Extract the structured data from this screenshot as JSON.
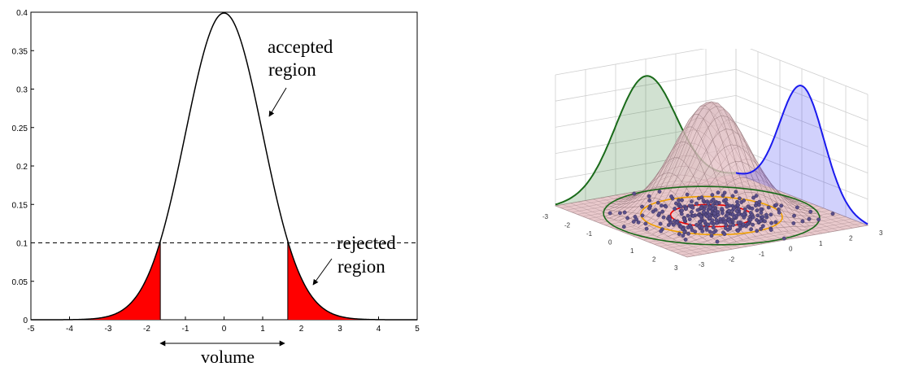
{
  "chart_data": [
    {
      "type": "line",
      "title": "",
      "xlabel": "",
      "ylabel": "",
      "xlim": [
        -5,
        5
      ],
      "ylim": [
        0,
        0.4
      ],
      "x_ticks": [
        "-5",
        "-4",
        "-3",
        "-2",
        "-1",
        "0",
        "1",
        "2",
        "3",
        "4",
        "5"
      ],
      "y_ticks": [
        "0",
        "0.05",
        "0.1",
        "0.15",
        "0.2",
        "0.25",
        "0.3",
        "0.35",
        "0.4"
      ],
      "series": [
        {
          "x": [
            -5,
            -4,
            -3,
            -2.5,
            -2,
            -1.65,
            -1.5,
            -1,
            -0.5,
            0,
            0.5,
            1,
            1.5,
            1.65,
            2,
            2.5,
            3,
            4,
            5
          ],
          "values": [
            1.5e-06,
            0.000134,
            0.0044,
            0.0175,
            0.054,
            0.1023,
            0.1295,
            0.242,
            0.352,
            0.3989,
            0.352,
            0.242,
            0.1295,
            0.1023,
            0.054,
            0.0175,
            0.0044,
            0.000134,
            1.5e-06
          ],
          "color": "#000000"
        }
      ],
      "threshold": 0.1,
      "rejected_x": [
        -1.65,
        1.65
      ],
      "fill_color": "#ff0000",
      "annotations": [
        {
          "lines": [
            "accepted",
            "region"
          ]
        },
        {
          "lines": [
            "rejected",
            "region"
          ]
        },
        {
          "lines": [
            "volume"
          ]
        }
      ]
    },
    {
      "type": "scatter",
      "title": "",
      "x_ticks": [
        "-3",
        "-2",
        "-1",
        "0",
        "1",
        "2",
        "3"
      ],
      "y_ticks": [
        "3",
        "2",
        "1",
        "0",
        "-1",
        "-2",
        "-3"
      ],
      "surface_color": "#e9c9cc",
      "marginal_x_color": "#1a6b1a",
      "marginal_y_color": "#1a1aee",
      "contour_colors": [
        "#ee0000",
        "#f0a000",
        "#1a6b1a"
      ]
    }
  ]
}
